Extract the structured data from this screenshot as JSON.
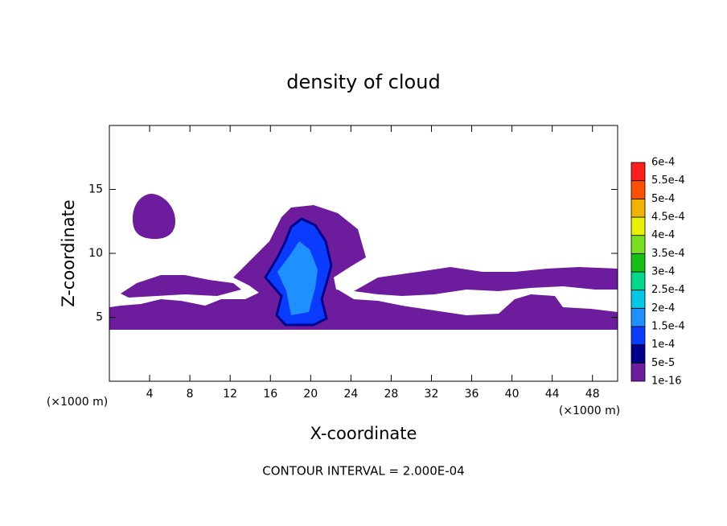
{
  "chart_data": {
    "type": "contour",
    "title": "density of cloud",
    "x_label": "X-coordinate",
    "y_label": "Z-coordinate",
    "x_unit_label": "(×1000 m)",
    "y_unit_label": "(×1000 m)",
    "annotation": "CONTOUR INTERVAL = 2.000E-04",
    "xlim": [
      0,
      50.5
    ],
    "ylim": [
      0,
      20
    ],
    "xticks": [
      4,
      8,
      12,
      16,
      20,
      24,
      28,
      32,
      36,
      40,
      44,
      48
    ],
    "yticks": [
      5,
      10,
      15
    ],
    "colorbar": {
      "levels": [
        {
          "value": 1e-16,
          "label": "1e-16"
        },
        {
          "value": 5e-05,
          "label": "5e-5"
        },
        {
          "value": 0.0001,
          "label": "1e-4"
        },
        {
          "value": 0.00015,
          "label": "1.5e-4"
        },
        {
          "value": 0.0002,
          "label": "2e-4"
        },
        {
          "value": 0.00025,
          "label": "2.5e-4"
        },
        {
          "value": 0.0003,
          "label": "3e-4"
        },
        {
          "value": 0.00035,
          "label": "3.5e-4"
        },
        {
          "value": 0.0004,
          "label": "4e-4"
        },
        {
          "value": 0.00045,
          "label": "4.5e-4"
        },
        {
          "value": 0.0005,
          "label": "5e-4"
        },
        {
          "value": 0.00055,
          "label": "5.5e-4"
        },
        {
          "value": 0.0006,
          "label": "6e-4"
        }
      ],
      "colors": [
        "#6e1c9e",
        "#00008c",
        "#0a3cff",
        "#1e90ff",
        "#00c8e6",
        "#00d88c",
        "#14c014",
        "#78e01e",
        "#e6f000",
        "#f0b400",
        "#ff5000",
        "#ff1e1e"
      ]
    }
  }
}
